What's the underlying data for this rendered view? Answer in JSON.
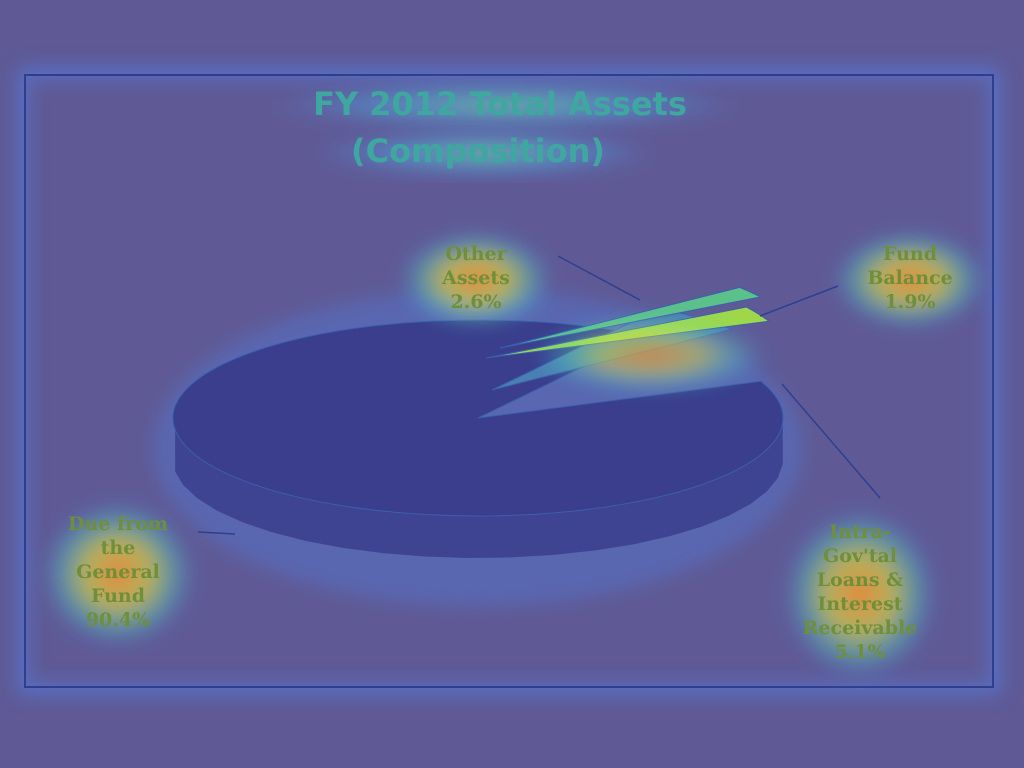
{
  "chart_data": {
    "type": "pie",
    "title_lines": [
      "FY 2012 Total Assets",
      "(Composition)"
    ],
    "slices": [
      {
        "label_lines": [
          "Due from",
          "the",
          "General",
          "Fund",
          "90.4%"
        ],
        "value": 90.4,
        "color": "#3a3e8c"
      },
      {
        "label_lines": [
          "Intra-",
          "Gov'tal",
          "Loans &",
          "Interest",
          "Receivable",
          "5.1%"
        ],
        "value": 5.1,
        "color": "#4a7fb0"
      },
      {
        "label_lines": [
          "Fund",
          "Balance",
          "1.9%"
        ],
        "value": 1.9,
        "color": "#5cc08a"
      },
      {
        "label_lines": [
          "Other",
          "Assets",
          "2.6%"
        ],
        "value": 2.6,
        "color": "#9ed84a"
      }
    ]
  },
  "colors": {
    "background": "#5f5a96",
    "frame": "#2f3f8f",
    "title": "#3fa6a0",
    "label": "#6f8f3a",
    "glow_warm": "#ff9f2a"
  }
}
